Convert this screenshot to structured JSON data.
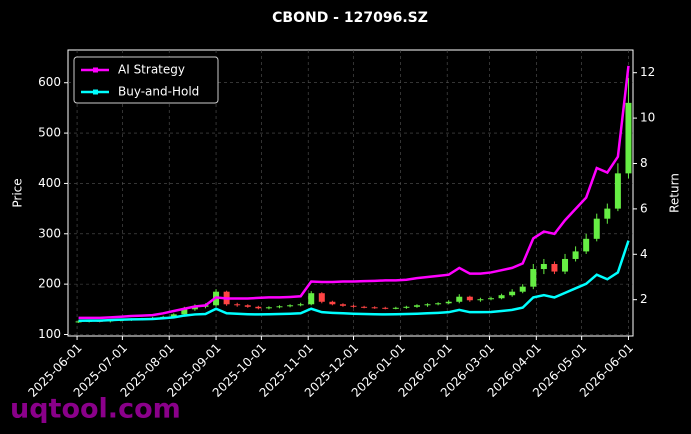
{
  "chart_data": {
    "type": "candlestick",
    "title": "CBOND - 127096.SZ",
    "ylabel": "Price",
    "y2label": "Return",
    "watermark": "uqtool.com",
    "x": [
      "2025-06-02",
      "2025-06-09",
      "2025-06-16",
      "2025-06-23",
      "2025-06-30",
      "2025-07-07",
      "2025-07-14",
      "2025-07-21",
      "2025-07-28",
      "2025-08-04",
      "2025-08-11",
      "2025-08-18",
      "2025-08-25",
      "2025-09-01",
      "2025-09-08",
      "2025-09-15",
      "2025-09-22",
      "2025-09-29",
      "2025-10-06",
      "2025-10-13",
      "2025-10-20",
      "2025-10-27",
      "2025-11-03",
      "2025-11-10",
      "2025-11-17",
      "2025-11-24",
      "2025-12-01",
      "2025-12-08",
      "2025-12-15",
      "2025-12-22",
      "2025-12-29",
      "2026-01-05",
      "2026-01-12",
      "2026-01-19",
      "2026-01-26",
      "2026-02-02",
      "2026-02-09",
      "2026-02-16",
      "2026-02-23",
      "2026-03-02",
      "2026-03-09",
      "2026-03-16",
      "2026-03-23",
      "2026-03-30",
      "2026-04-06",
      "2026-04-13",
      "2026-04-20",
      "2026-04-27",
      "2026-05-04",
      "2026-05-11",
      "2026-05-18",
      "2026-05-25",
      "2026-06-01"
    ],
    "open": [
      125,
      126,
      127,
      126,
      128,
      129,
      130,
      131,
      133,
      135,
      140,
      150,
      155,
      158,
      185,
      160,
      158,
      155,
      152,
      154,
      156,
      158,
      160,
      182,
      165,
      160,
      157,
      155,
      154,
      153,
      152,
      153,
      155,
      158,
      160,
      162,
      165,
      175,
      168,
      170,
      172,
      178,
      185,
      195,
      230,
      240,
      225,
      250,
      265,
      290,
      330,
      350,
      420
    ],
    "high": [
      128,
      129,
      129,
      130,
      131,
      132,
      133,
      135,
      137,
      142,
      155,
      160,
      162,
      190,
      187,
      163,
      160,
      157,
      156,
      158,
      160,
      163,
      186,
      184,
      167,
      162,
      159,
      157,
      156,
      155,
      155,
      157,
      160,
      162,
      164,
      168,
      180,
      177,
      173,
      175,
      181,
      190,
      200,
      240,
      250,
      245,
      260,
      275,
      300,
      340,
      360,
      440,
      610
    ],
    "low": [
      123,
      124,
      124,
      124,
      126,
      127,
      128,
      129,
      131,
      133,
      138,
      147,
      152,
      155,
      157,
      155,
      153,
      150,
      150,
      152,
      154,
      156,
      158,
      162,
      158,
      155,
      153,
      152,
      151,
      150,
      150,
      151,
      153,
      155,
      158,
      160,
      162,
      165,
      165,
      168,
      170,
      175,
      182,
      190,
      220,
      220,
      220,
      245,
      260,
      285,
      320,
      345,
      410
    ],
    "close": [
      126,
      127,
      126,
      128,
      129,
      130,
      131,
      133,
      135,
      140,
      150,
      155,
      158,
      185,
      160,
      158,
      155,
      152,
      154,
      156,
      158,
      160,
      182,
      165,
      160,
      157,
      155,
      154,
      153,
      152,
      153,
      155,
      158,
      160,
      162,
      165,
      175,
      168,
      170,
      172,
      178,
      185,
      195,
      230,
      240,
      225,
      250,
      265,
      290,
      330,
      350,
      420,
      560
    ],
    "up_color": "#66ee44",
    "down_color": "#ff4444",
    "series": [
      {
        "name": "AI Strategy",
        "color": "#ff00ff",
        "axis": "y2",
        "values": [
          1.2,
          1.2,
          1.2,
          1.22,
          1.25,
          1.28,
          1.3,
          1.32,
          1.4,
          1.5,
          1.6,
          1.7,
          1.75,
          2.1,
          2.05,
          2.05,
          2.05,
          2.08,
          2.1,
          2.1,
          2.12,
          2.15,
          2.8,
          2.78,
          2.78,
          2.8,
          2.8,
          2.82,
          2.83,
          2.85,
          2.85,
          2.88,
          2.95,
          3.0,
          3.05,
          3.1,
          3.4,
          3.15,
          3.15,
          3.2,
          3.3,
          3.4,
          3.6,
          4.7,
          5.0,
          4.9,
          5.5,
          6.0,
          6.5,
          7.8,
          7.6,
          8.3,
          12.3
        ]
      },
      {
        "name": "Buy-and-Hold",
        "color": "#00ffff",
        "axis": "y2",
        "values": [
          1.07,
          1.08,
          1.08,
          1.1,
          1.12,
          1.13,
          1.14,
          1.15,
          1.18,
          1.22,
          1.3,
          1.35,
          1.37,
          1.6,
          1.4,
          1.38,
          1.36,
          1.35,
          1.36,
          1.37,
          1.38,
          1.4,
          1.6,
          1.45,
          1.42,
          1.4,
          1.38,
          1.37,
          1.36,
          1.35,
          1.36,
          1.37,
          1.38,
          1.4,
          1.42,
          1.45,
          1.55,
          1.45,
          1.45,
          1.46,
          1.5,
          1.55,
          1.65,
          2.1,
          2.2,
          2.1,
          2.3,
          2.5,
          2.7,
          3.1,
          2.9,
          3.2,
          4.6
        ]
      }
    ],
    "xlim": [
      "2025-05-26",
      "2026-06-04"
    ],
    "xticks": [
      "2025-06-01",
      "2025-07-01",
      "2025-08-01",
      "2025-09-01",
      "2025-10-01",
      "2025-11-01",
      "2025-12-01",
      "2026-01-01",
      "2026-02-01",
      "2026-03-01",
      "2026-04-01",
      "2026-05-01",
      "2026-06-01"
    ],
    "ylim": [
      97,
      665
    ],
    "yticks": [
      100,
      200,
      300,
      400,
      500,
      600
    ],
    "y2lim": [
      0.4,
      13.0
    ],
    "y2ticks": [
      2,
      4,
      6,
      8,
      10,
      12
    ],
    "grid": true,
    "legend": "upper left"
  }
}
